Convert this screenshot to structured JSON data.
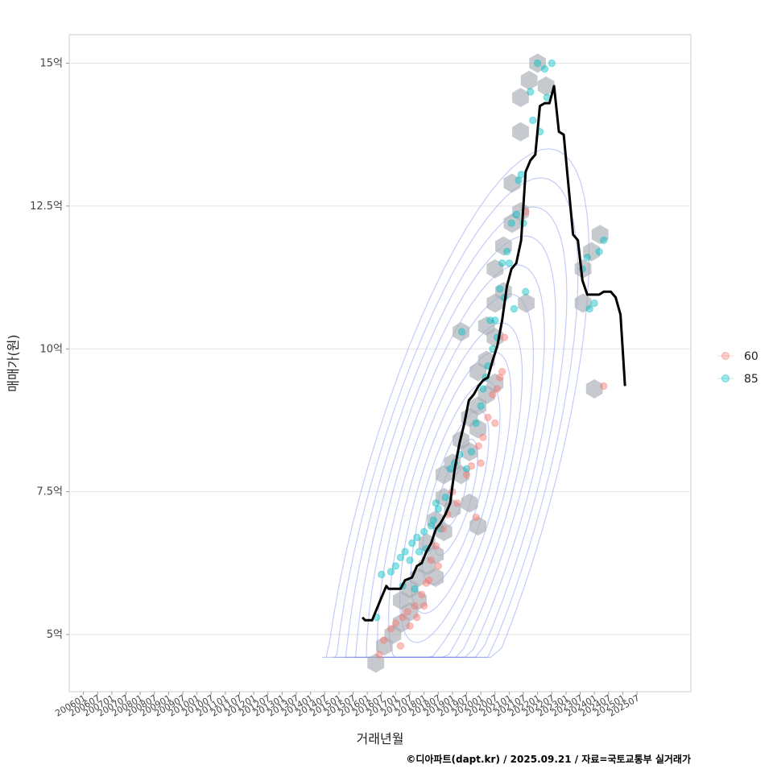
{
  "chart_data": {
    "type": "scatter",
    "title": "",
    "xlabel": "거래년월",
    "ylabel": "매매가(원)",
    "caption": "©디아파트(dapt.kr) / 2025.09.21 / 자료=국토교통부 실거래가",
    "ylim_eok": [
      4.0,
      15.5
    ],
    "xlim_year": [
      2005.5,
      2027.4
    ],
    "y_ticks": [
      {
        "value": 5,
        "label": "5억"
      },
      {
        "value": 7.5,
        "label": "7.5억"
      },
      {
        "value": 10,
        "label": "10억"
      },
      {
        "value": 12.5,
        "label": "12.5억"
      },
      {
        "value": 15,
        "label": "15억"
      }
    ],
    "x_ticks": [
      "200601",
      "200607",
      "200701",
      "200707",
      "200801",
      "200807",
      "200901",
      "200907",
      "201001",
      "201007",
      "201101",
      "201107",
      "201201",
      "201207",
      "201301",
      "201307",
      "201401",
      "201407",
      "201501",
      "201507",
      "201601",
      "201607",
      "201701",
      "201707",
      "201801",
      "201807",
      "201901",
      "201907",
      "202001",
      "202007",
      "202101",
      "202107",
      "202201",
      "202207",
      "202301",
      "202307",
      "202401",
      "202407",
      "202501",
      "202507"
    ],
    "legend": [
      {
        "name": "60",
        "color": "#F8766D"
      },
      {
        "name": "85",
        "color": "#00BFC4"
      }
    ],
    "legend_position": "right",
    "series": [
      {
        "name": "85",
        "color": "#00BFC4",
        "points": [
          [
            2016.33,
            5.3
          ],
          [
            2016.5,
            6.05
          ],
          [
            2016.83,
            6.1
          ],
          [
            2017.0,
            6.2
          ],
          [
            2017.17,
            6.35
          ],
          [
            2017.25,
            5.85
          ],
          [
            2017.33,
            6.45
          ],
          [
            2017.5,
            6.3
          ],
          [
            2017.58,
            6.6
          ],
          [
            2017.67,
            5.8
          ],
          [
            2017.75,
            6.7
          ],
          [
            2017.83,
            6.45
          ],
          [
            2018.0,
            6.8
          ],
          [
            2018.08,
            6.5
          ],
          [
            2018.25,
            6.9
          ],
          [
            2018.33,
            7.0
          ],
          [
            2018.42,
            7.3
          ],
          [
            2018.5,
            7.2
          ],
          [
            2018.58,
            6.85
          ],
          [
            2018.75,
            7.4
          ],
          [
            2018.92,
            7.9
          ],
          [
            2019.08,
            8.0
          ],
          [
            2019.25,
            8.15
          ],
          [
            2019.33,
            10.3
          ],
          [
            2019.5,
            7.9
          ],
          [
            2019.67,
            8.2
          ],
          [
            2019.83,
            8.7
          ],
          [
            2020.0,
            9.0
          ],
          [
            2020.08,
            9.3
          ],
          [
            2020.17,
            9.5
          ],
          [
            2020.25,
            9.7
          ],
          [
            2020.33,
            10.5
          ],
          [
            2020.42,
            10.0
          ],
          [
            2020.5,
            10.5
          ],
          [
            2020.58,
            10.2
          ],
          [
            2020.67,
            11.05
          ],
          [
            2020.75,
            11.5
          ],
          [
            2020.83,
            10.9
          ],
          [
            2020.92,
            11.7
          ],
          [
            2021.0,
            11.5
          ],
          [
            2021.08,
            12.2
          ],
          [
            2021.17,
            10.7
          ],
          [
            2021.25,
            12.35
          ],
          [
            2021.33,
            12.95
          ],
          [
            2021.42,
            13.05
          ],
          [
            2021.5,
            12.2
          ],
          [
            2021.58,
            11.0
          ],
          [
            2021.75,
            14.5
          ],
          [
            2021.83,
            14.0
          ],
          [
            2022.0,
            15.0
          ],
          [
            2022.08,
            13.8
          ],
          [
            2022.25,
            14.9
          ],
          [
            2022.33,
            14.4
          ],
          [
            2022.5,
            15.0
          ],
          [
            2023.58,
            11.4
          ],
          [
            2023.75,
            11.6
          ],
          [
            2023.83,
            10.7
          ],
          [
            2024.0,
            10.8
          ],
          [
            2024.17,
            11.7
          ],
          [
            2024.33,
            11.9
          ]
        ]
      },
      {
        "name": "60",
        "color": "#F8766D",
        "points": [
          [
            2016.42,
            4.65
          ],
          [
            2016.58,
            4.9
          ],
          [
            2016.83,
            5.1
          ],
          [
            2017.0,
            5.2
          ],
          [
            2017.17,
            4.8
          ],
          [
            2017.25,
            5.3
          ],
          [
            2017.42,
            5.4
          ],
          [
            2017.5,
            5.15
          ],
          [
            2017.67,
            5.5
          ],
          [
            2017.75,
            5.3
          ],
          [
            2017.92,
            5.7
          ],
          [
            2018.0,
            5.5
          ],
          [
            2018.08,
            5.9
          ],
          [
            2018.17,
            5.95
          ],
          [
            2018.25,
            6.3
          ],
          [
            2018.42,
            6.55
          ],
          [
            2018.5,
            6.2
          ],
          [
            2018.67,
            6.85
          ],
          [
            2018.83,
            7.1
          ],
          [
            2019.0,
            7.5
          ],
          [
            2019.17,
            7.3
          ],
          [
            2019.5,
            7.8
          ],
          [
            2019.67,
            7.95
          ],
          [
            2019.83,
            7.05
          ],
          [
            2019.92,
            8.3
          ],
          [
            2020.0,
            8.0
          ],
          [
            2020.08,
            8.45
          ],
          [
            2020.25,
            8.8
          ],
          [
            2020.42,
            9.2
          ],
          [
            2020.5,
            8.7
          ],
          [
            2020.58,
            9.3
          ],
          [
            2020.67,
            9.5
          ],
          [
            2020.75,
            9.6
          ],
          [
            2020.83,
            10.2
          ],
          [
            2021.58,
            12.4
          ],
          [
            2024.33,
            9.35
          ]
        ]
      }
    ],
    "median_line": {
      "name": "median",
      "color": "#000000",
      "points": [
        [
          2015.83,
          5.3
        ],
        [
          2015.92,
          5.25
        ],
        [
          2016.17,
          5.25
        ],
        [
          2016.5,
          5.65
        ],
        [
          2016.67,
          5.85
        ],
        [
          2016.75,
          5.8
        ],
        [
          2017.17,
          5.8
        ],
        [
          2017.33,
          5.95
        ],
        [
          2017.58,
          6.0
        ],
        [
          2017.75,
          6.2
        ],
        [
          2017.92,
          6.25
        ],
        [
          2018.08,
          6.45
        ],
        [
          2018.25,
          6.6
        ],
        [
          2018.42,
          6.85
        ],
        [
          2018.58,
          6.95
        ],
        [
          2018.75,
          7.1
        ],
        [
          2018.92,
          7.3
        ],
        [
          2019.08,
          7.9
        ],
        [
          2019.25,
          8.35
        ],
        [
          2019.42,
          8.7
        ],
        [
          2019.58,
          9.1
        ],
        [
          2019.75,
          9.2
        ],
        [
          2019.92,
          9.35
        ],
        [
          2020.08,
          9.45
        ],
        [
          2020.25,
          9.5
        ],
        [
          2020.42,
          9.8
        ],
        [
          2020.58,
          10.05
        ],
        [
          2020.75,
          10.5
        ],
        [
          2020.92,
          11.1
        ],
        [
          2021.08,
          11.4
        ],
        [
          2021.25,
          11.5
        ],
        [
          2021.42,
          11.9
        ],
        [
          2021.58,
          13.1
        ],
        [
          2021.75,
          13.3
        ],
        [
          2021.92,
          13.4
        ],
        [
          2022.08,
          14.25
        ],
        [
          2022.25,
          14.3
        ],
        [
          2022.42,
          14.3
        ],
        [
          2022.58,
          14.6
        ],
        [
          2022.75,
          13.8
        ],
        [
          2022.92,
          13.75
        ],
        [
          2023.08,
          12.9
        ],
        [
          2023.25,
          12.0
        ],
        [
          2023.42,
          11.9
        ],
        [
          2023.58,
          11.2
        ],
        [
          2023.75,
          10.95
        ],
        [
          2024.17,
          10.95
        ],
        [
          2024.33,
          11.0
        ],
        [
          2024.58,
          11.0
        ],
        [
          2024.75,
          10.9
        ],
        [
          2024.92,
          10.6
        ],
        [
          2025.08,
          9.35
        ]
      ]
    },
    "hexbins": [
      [
        2016.3,
        4.5
      ],
      [
        2016.6,
        4.8
      ],
      [
        2016.9,
        5.0
      ],
      [
        2017.2,
        5.2
      ],
      [
        2017.5,
        5.4
      ],
      [
        2017.2,
        5.6
      ],
      [
        2017.5,
        5.8
      ],
      [
        2017.8,
        5.6
      ],
      [
        2017.8,
        6.0
      ],
      [
        2018.1,
        6.2
      ],
      [
        2018.4,
        6.0
      ],
      [
        2018.1,
        6.6
      ],
      [
        2018.4,
        6.4
      ],
      [
        2018.7,
        6.8
      ],
      [
        2018.4,
        7.0
      ],
      [
        2018.7,
        7.4
      ],
      [
        2019.0,
        7.2
      ],
      [
        2018.7,
        7.8
      ],
      [
        2019.0,
        8.0
      ],
      [
        2019.3,
        7.8
      ],
      [
        2019.3,
        8.4
      ],
      [
        2019.6,
        8.2
      ],
      [
        2019.9,
        8.6
      ],
      [
        2019.6,
        8.8
      ],
      [
        2019.9,
        9.0
      ],
      [
        2020.2,
        9.2
      ],
      [
        2020.5,
        9.4
      ],
      [
        2019.9,
        9.6
      ],
      [
        2020.2,
        9.8
      ],
      [
        2020.5,
        10.2
      ],
      [
        2020.2,
        10.4
      ],
      [
        2020.5,
        10.8
      ],
      [
        2020.8,
        11.0
      ],
      [
        2020.5,
        11.4
      ],
      [
        2020.8,
        11.8
      ],
      [
        2021.1,
        12.2
      ],
      [
        2021.4,
        12.4
      ],
      [
        2021.1,
        12.9
      ],
      [
        2021.4,
        13.8
      ],
      [
        2021.4,
        14.4
      ],
      [
        2021.7,
        14.7
      ],
      [
        2022.0,
        15.0
      ],
      [
        2022.3,
        14.6
      ],
      [
        2019.3,
        10.3
      ],
      [
        2021.6,
        10.8
      ],
      [
        2023.6,
        11.4
      ],
      [
        2023.9,
        11.7
      ],
      [
        2024.2,
        12.0
      ],
      [
        2023.6,
        10.8
      ],
      [
        2024.0,
        9.3
      ],
      [
        2019.9,
        6.9
      ],
      [
        2019.6,
        7.3
      ]
    ]
  }
}
